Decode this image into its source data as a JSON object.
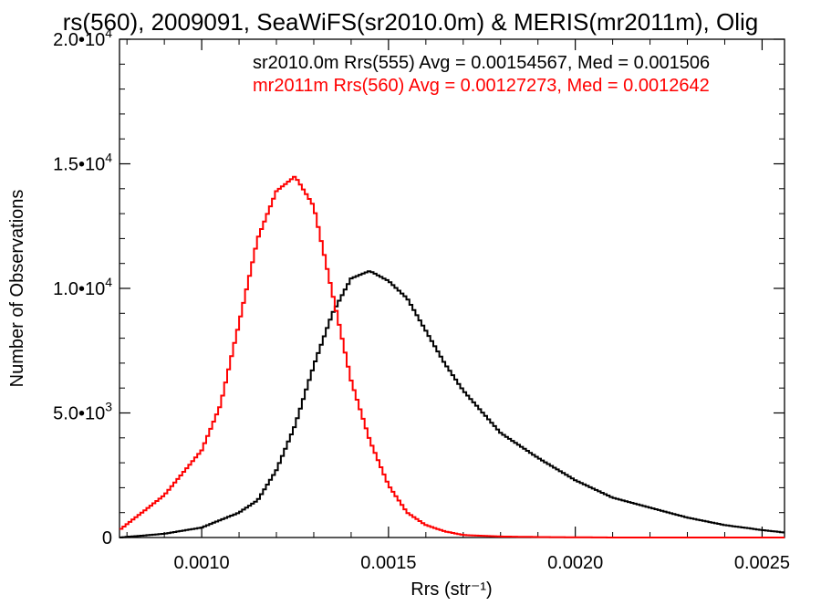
{
  "chart_data": {
    "type": "line",
    "title": "rs(560), 2009091, SeaWiFS(sr2010.0m) & MERIS(mr2011m), Olig",
    "xlabel": "Rrs (str⁻¹)",
    "ylabel": "Number of Observations",
    "xlim": [
      0.00078,
      0.00256
    ],
    "ylim": [
      0,
      20000
    ],
    "x_ticks": [
      {
        "value": 0.001,
        "label": "0.0010"
      },
      {
        "value": 0.0015,
        "label": "0.0015"
      },
      {
        "value": 0.002,
        "label": "0.0020"
      },
      {
        "value": 0.0025,
        "label": "0.0025"
      }
    ],
    "y_ticks": [
      {
        "value": 0,
        "mantissa": "0",
        "exp": ""
      },
      {
        "value": 5000,
        "mantissa": "5.0•10",
        "exp": "3"
      },
      {
        "value": 10000,
        "mantissa": "1.0•10",
        "exp": "4"
      },
      {
        "value": 15000,
        "mantissa": "1.5•10",
        "exp": "4"
      },
      {
        "value": 20000,
        "mantissa": "2.0•10",
        "exp": "4"
      }
    ],
    "grid": false,
    "legend_position": "top-right",
    "series": [
      {
        "name": "sr2010.0m Rrs(555) Avg = 0.00154567, Med = 0.001506",
        "color": "#000000",
        "x": [
          0.00078,
          0.0009,
          0.001,
          0.0011,
          0.00115,
          0.0012,
          0.00125,
          0.0013,
          0.00135,
          0.0014,
          0.00145,
          0.0015,
          0.00155,
          0.0016,
          0.00165,
          0.0017,
          0.0018,
          0.0019,
          0.002,
          0.0021,
          0.0022,
          0.0023,
          0.0024,
          0.0025,
          0.00256
        ],
        "y": [
          0,
          150,
          400,
          1000,
          1500,
          2700,
          4500,
          6900,
          9000,
          10400,
          10700,
          10300,
          9600,
          8300,
          7000,
          5900,
          4200,
          3200,
          2300,
          1600,
          1200,
          800,
          500,
          300,
          200
        ]
      },
      {
        "name": "mr2011m Rrs(560) Avg = 0.00127273, Med = 0.0012642",
        "color": "#ff0000",
        "x": [
          0.00078,
          0.0009,
          0.001,
          0.00105,
          0.0011,
          0.00115,
          0.0012,
          0.00125,
          0.0013,
          0.00135,
          0.0014,
          0.00145,
          0.0015,
          0.00155,
          0.0016,
          0.00165,
          0.0017,
          0.0018,
          0.0019,
          0.002,
          0.0021,
          0.0022,
          0.0025,
          0.00256
        ],
        "y": [
          300,
          1700,
          3500,
          5300,
          8600,
          12000,
          13900,
          14500,
          13300,
          9800,
          6300,
          3900,
          2100,
          1000,
          500,
          250,
          100,
          40,
          20,
          10,
          0,
          0,
          0,
          0
        ]
      }
    ]
  }
}
